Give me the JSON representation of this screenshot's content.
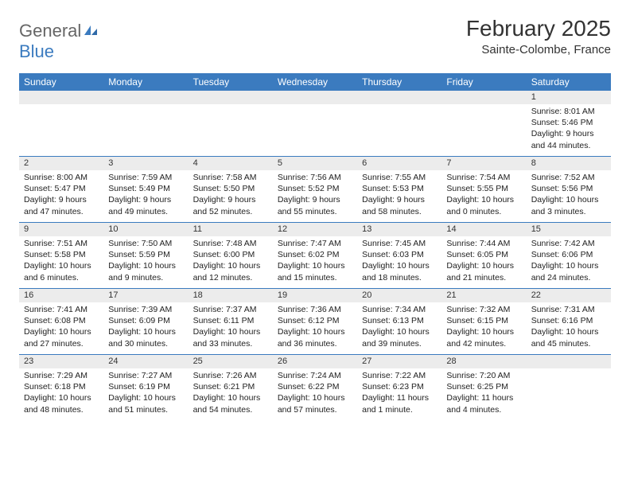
{
  "logo": {
    "general": "General",
    "blue": "Blue"
  },
  "title": "February 2025",
  "location": "Sainte-Colombe, France",
  "header_bg": "#3b7bbf",
  "weekdays": [
    "Sunday",
    "Monday",
    "Tuesday",
    "Wednesday",
    "Thursday",
    "Friday",
    "Saturday"
  ],
  "weeks": [
    [
      {
        "n": "",
        "sr": "",
        "ss": "",
        "dl": ""
      },
      {
        "n": "",
        "sr": "",
        "ss": "",
        "dl": ""
      },
      {
        "n": "",
        "sr": "",
        "ss": "",
        "dl": ""
      },
      {
        "n": "",
        "sr": "",
        "ss": "",
        "dl": ""
      },
      {
        "n": "",
        "sr": "",
        "ss": "",
        "dl": ""
      },
      {
        "n": "",
        "sr": "",
        "ss": "",
        "dl": ""
      },
      {
        "n": "1",
        "sr": "Sunrise: 8:01 AM",
        "ss": "Sunset: 5:46 PM",
        "dl": "Daylight: 9 hours and 44 minutes."
      }
    ],
    [
      {
        "n": "2",
        "sr": "Sunrise: 8:00 AM",
        "ss": "Sunset: 5:47 PM",
        "dl": "Daylight: 9 hours and 47 minutes."
      },
      {
        "n": "3",
        "sr": "Sunrise: 7:59 AM",
        "ss": "Sunset: 5:49 PM",
        "dl": "Daylight: 9 hours and 49 minutes."
      },
      {
        "n": "4",
        "sr": "Sunrise: 7:58 AM",
        "ss": "Sunset: 5:50 PM",
        "dl": "Daylight: 9 hours and 52 minutes."
      },
      {
        "n": "5",
        "sr": "Sunrise: 7:56 AM",
        "ss": "Sunset: 5:52 PM",
        "dl": "Daylight: 9 hours and 55 minutes."
      },
      {
        "n": "6",
        "sr": "Sunrise: 7:55 AM",
        "ss": "Sunset: 5:53 PM",
        "dl": "Daylight: 9 hours and 58 minutes."
      },
      {
        "n": "7",
        "sr": "Sunrise: 7:54 AM",
        "ss": "Sunset: 5:55 PM",
        "dl": "Daylight: 10 hours and 0 minutes."
      },
      {
        "n": "8",
        "sr": "Sunrise: 7:52 AM",
        "ss": "Sunset: 5:56 PM",
        "dl": "Daylight: 10 hours and 3 minutes."
      }
    ],
    [
      {
        "n": "9",
        "sr": "Sunrise: 7:51 AM",
        "ss": "Sunset: 5:58 PM",
        "dl": "Daylight: 10 hours and 6 minutes."
      },
      {
        "n": "10",
        "sr": "Sunrise: 7:50 AM",
        "ss": "Sunset: 5:59 PM",
        "dl": "Daylight: 10 hours and 9 minutes."
      },
      {
        "n": "11",
        "sr": "Sunrise: 7:48 AM",
        "ss": "Sunset: 6:00 PM",
        "dl": "Daylight: 10 hours and 12 minutes."
      },
      {
        "n": "12",
        "sr": "Sunrise: 7:47 AM",
        "ss": "Sunset: 6:02 PM",
        "dl": "Daylight: 10 hours and 15 minutes."
      },
      {
        "n": "13",
        "sr": "Sunrise: 7:45 AM",
        "ss": "Sunset: 6:03 PM",
        "dl": "Daylight: 10 hours and 18 minutes."
      },
      {
        "n": "14",
        "sr": "Sunrise: 7:44 AM",
        "ss": "Sunset: 6:05 PM",
        "dl": "Daylight: 10 hours and 21 minutes."
      },
      {
        "n": "15",
        "sr": "Sunrise: 7:42 AM",
        "ss": "Sunset: 6:06 PM",
        "dl": "Daylight: 10 hours and 24 minutes."
      }
    ],
    [
      {
        "n": "16",
        "sr": "Sunrise: 7:41 AM",
        "ss": "Sunset: 6:08 PM",
        "dl": "Daylight: 10 hours and 27 minutes."
      },
      {
        "n": "17",
        "sr": "Sunrise: 7:39 AM",
        "ss": "Sunset: 6:09 PM",
        "dl": "Daylight: 10 hours and 30 minutes."
      },
      {
        "n": "18",
        "sr": "Sunrise: 7:37 AM",
        "ss": "Sunset: 6:11 PM",
        "dl": "Daylight: 10 hours and 33 minutes."
      },
      {
        "n": "19",
        "sr": "Sunrise: 7:36 AM",
        "ss": "Sunset: 6:12 PM",
        "dl": "Daylight: 10 hours and 36 minutes."
      },
      {
        "n": "20",
        "sr": "Sunrise: 7:34 AM",
        "ss": "Sunset: 6:13 PM",
        "dl": "Daylight: 10 hours and 39 minutes."
      },
      {
        "n": "21",
        "sr": "Sunrise: 7:32 AM",
        "ss": "Sunset: 6:15 PM",
        "dl": "Daylight: 10 hours and 42 minutes."
      },
      {
        "n": "22",
        "sr": "Sunrise: 7:31 AM",
        "ss": "Sunset: 6:16 PM",
        "dl": "Daylight: 10 hours and 45 minutes."
      }
    ],
    [
      {
        "n": "23",
        "sr": "Sunrise: 7:29 AM",
        "ss": "Sunset: 6:18 PM",
        "dl": "Daylight: 10 hours and 48 minutes."
      },
      {
        "n": "24",
        "sr": "Sunrise: 7:27 AM",
        "ss": "Sunset: 6:19 PM",
        "dl": "Daylight: 10 hours and 51 minutes."
      },
      {
        "n": "25",
        "sr": "Sunrise: 7:26 AM",
        "ss": "Sunset: 6:21 PM",
        "dl": "Daylight: 10 hours and 54 minutes."
      },
      {
        "n": "26",
        "sr": "Sunrise: 7:24 AM",
        "ss": "Sunset: 6:22 PM",
        "dl": "Daylight: 10 hours and 57 minutes."
      },
      {
        "n": "27",
        "sr": "Sunrise: 7:22 AM",
        "ss": "Sunset: 6:23 PM",
        "dl": "Daylight: 11 hours and 1 minute."
      },
      {
        "n": "28",
        "sr": "Sunrise: 7:20 AM",
        "ss": "Sunset: 6:25 PM",
        "dl": "Daylight: 11 hours and 4 minutes."
      },
      {
        "n": "",
        "sr": "",
        "ss": "",
        "dl": ""
      }
    ]
  ]
}
